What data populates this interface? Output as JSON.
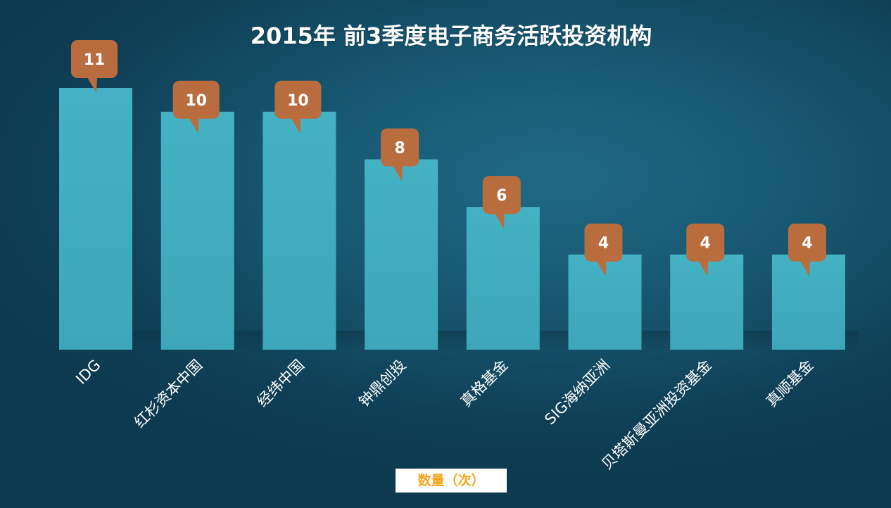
{
  "chart_data": {
    "type": "bar",
    "title": "2015年 前3季度电子商务活跃投资机构",
    "categories": [
      "IDG",
      "红杉资本中国",
      "经纬中国",
      "钟鼎创投",
      "真格基金",
      "SIG海纳亚洲",
      "贝塔斯曼亚洲投资基金",
      "真顺基金"
    ],
    "values": [
      11,
      10,
      10,
      8,
      6,
      4,
      4,
      4
    ],
    "series": [
      {
        "name": "数量（次）",
        "values": [
          11,
          10,
          10,
          8,
          6,
          4,
          4,
          4
        ]
      }
    ],
    "ylim": [
      0,
      11
    ],
    "grid": false,
    "legend": "bottom-center",
    "colors": {
      "bar": "#3fadc0",
      "bar_shadow": "#2e8fa3",
      "callout": "#b96d3e",
      "callout_text": "#ffffff",
      "legend_text": "#f4a51c"
    }
  },
  "legend": {
    "label": "数量（次）"
  }
}
